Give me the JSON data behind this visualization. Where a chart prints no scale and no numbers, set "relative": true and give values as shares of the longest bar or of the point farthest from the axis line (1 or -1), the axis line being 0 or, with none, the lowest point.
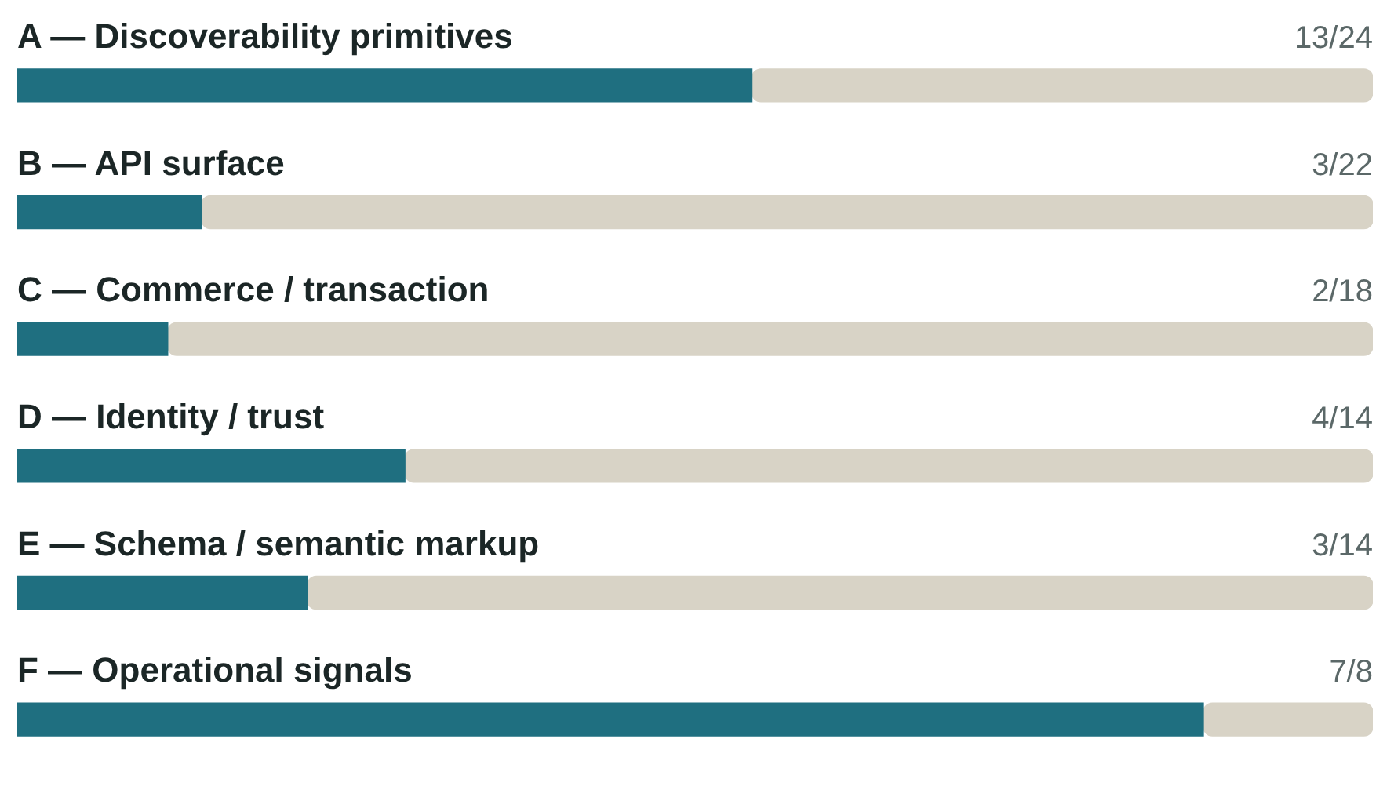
{
  "chart_data": {
    "type": "bar",
    "orientation": "horizontal",
    "stacked": true,
    "relative": true,
    "legend": false,
    "annotations": [
      "13/24",
      "3/22",
      "2/18",
      "4/14",
      "3/14",
      "7/8"
    ],
    "categories": [
      "A — Discoverability primitives",
      "B — API surface",
      "C — Commerce / transaction",
      "D — Identity / trust",
      "E — Schema / semantic markup",
      "F — Operational signals"
    ],
    "series": [
      {
        "color": "#1f6f80",
        "values": [
          0.542,
          0.136,
          0.111,
          0.286,
          0.214,
          0.875
        ]
      },
      {
        "color": "#d8d3c6",
        "values": [
          0.458,
          0.864,
          0.889,
          0.714,
          0.786,
          0.125
        ]
      }
    ]
  }
}
